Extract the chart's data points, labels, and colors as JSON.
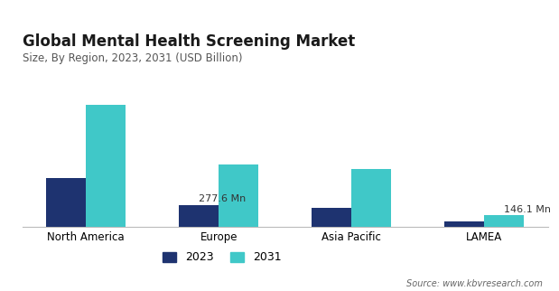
{
  "title": "Global Mental Health Screening Market",
  "subtitle": "Size, By Region, 2023, 2031 (USD Billion)",
  "categories": [
    "North America",
    "Europe",
    "Asia Pacific",
    "LAMEA"
  ],
  "values_2023": [
    0.62,
    0.2776,
    0.24,
    0.075
  ],
  "values_2031": [
    1.55,
    0.8,
    0.74,
    0.1461
  ],
  "color_2023": "#1e3370",
  "color_2031": "#40c8c8",
  "annotations": [
    {
      "region_idx": 1,
      "year": 2023,
      "text": "277.6 Mn",
      "ha": "left"
    },
    {
      "region_idx": 3,
      "year": 2031,
      "text": "146.1 Mn",
      "ha": "left"
    }
  ],
  "legend_labels": [
    "2023",
    "2031"
  ],
  "source_text": "Source: www.kbvresearch.com",
  "background_color": "#ffffff",
  "bar_width": 0.3,
  "ylim": [
    0,
    1.85
  ],
  "title_fontsize": 12,
  "subtitle_fontsize": 8.5,
  "tick_fontsize": 8.5,
  "legend_fontsize": 9,
  "source_fontsize": 7,
  "annotation_fontsize": 8
}
